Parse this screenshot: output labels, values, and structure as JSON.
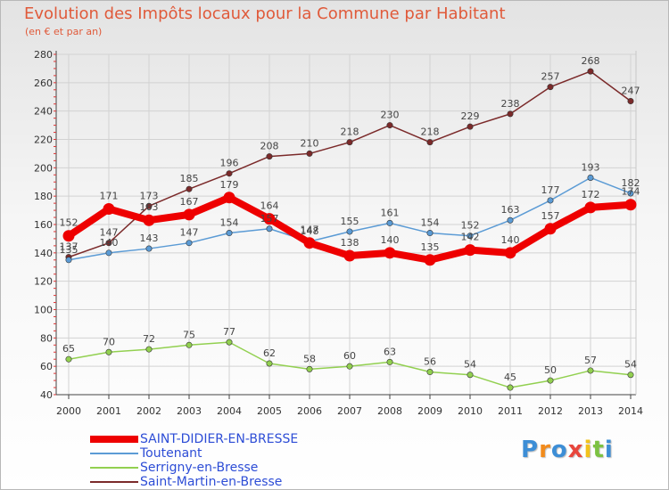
{
  "header": {
    "title": "Evolution des Impôts locaux pour la Commune par Habitant",
    "subtitle": "(en € et par an)"
  },
  "chart_data": {
    "type": "line",
    "categories": [
      "2000",
      "2001",
      "2002",
      "2003",
      "2004",
      "2005",
      "2006",
      "2007",
      "2008",
      "2009",
      "2010",
      "2011",
      "2012",
      "2013",
      "2014"
    ],
    "ylim": [
      40,
      280
    ],
    "yticks": [
      40,
      60,
      80,
      100,
      120,
      140,
      160,
      180,
      200,
      220,
      240,
      260,
      280
    ],
    "grid": true,
    "legend_position": "bottom-left",
    "series": [
      {
        "name": "SAINT-DIDIER-EN-BRESSE",
        "color": "#ee0000",
        "values": [
          152,
          171,
          163,
          167,
          179,
          164,
          147,
          138,
          140,
          135,
          142,
          140,
          157,
          172,
          174
        ]
      },
      {
        "name": "Toutenant",
        "color": "#5b9bd5",
        "values": [
          135,
          140,
          143,
          147,
          154,
          157,
          148,
          155,
          161,
          154,
          152,
          163,
          177,
          193,
          182
        ]
      },
      {
        "name": "Serrigny-en-Bresse",
        "color": "#92d050",
        "values": [
          65,
          70,
          72,
          75,
          77,
          62,
          58,
          60,
          63,
          56,
          54,
          45,
          50,
          57,
          54
        ]
      },
      {
        "name": "Saint-Martin-en-Bresse",
        "color": "#7b2a2a",
        "values": [
          137,
          147,
          173,
          185,
          196,
          208,
          210,
          218,
          230,
          218,
          229,
          238,
          257,
          268,
          247
        ]
      }
    ]
  },
  "logo": {
    "letters": [
      "P",
      "r",
      "o",
      "x",
      "i",
      "t",
      "i"
    ],
    "colors": [
      "#3d8ed6",
      "#f28b1c",
      "#3d8ed6",
      "#e8463c",
      "#f2c21b",
      "#7cc242",
      "#3d8ed6"
    ]
  }
}
